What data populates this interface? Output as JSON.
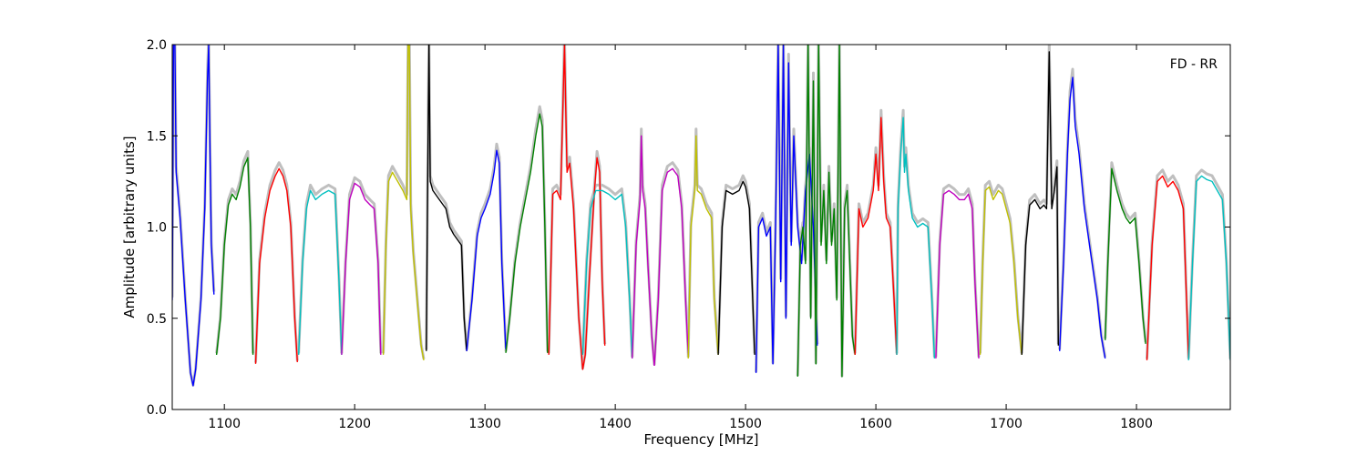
{
  "chart_data": {
    "type": "line",
    "title": "",
    "annotation": "FD - RR",
    "xlabel": "Frequency [MHz]",
    "ylabel": "Amplitude [arbitrary units]",
    "xlim": [
      1060,
      1872
    ],
    "ylim": [
      0.0,
      2.0
    ],
    "x_ticks": [
      1100,
      1200,
      1300,
      1400,
      1500,
      1600,
      1700,
      1800
    ],
    "x_tick_labels": [
      "1100",
      "1200",
      "1300",
      "1400",
      "1500",
      "1600",
      "1700",
      "1800"
    ],
    "y_ticks": [
      0.0,
      0.5,
      1.0,
      1.5,
      2.0
    ],
    "y_tick_labels": [
      "0.0",
      "0.5",
      "1.0",
      "1.5",
      "2.0"
    ],
    "grid": false,
    "legend": false,
    "reference_color": "#bfbfbf",
    "series": [
      {
        "color": "#0000ff",
        "x": [
          1060,
          1061,
          1062,
          1063,
          1066,
          1070,
          1074,
          1076,
          1078,
          1082,
          1085,
          1087,
          1088,
          1089,
          1090,
          1092
        ],
        "y": [
          0.6,
          2.0,
          2.0,
          1.3,
          1.05,
          0.6,
          0.2,
          0.13,
          0.22,
          0.6,
          1.1,
          1.8,
          2.0,
          1.4,
          0.9,
          0.63
        ]
      },
      {
        "color": "#008000",
        "x": [
          1094,
          1097,
          1100,
          1103,
          1106,
          1109,
          1112,
          1115,
          1118,
          1120,
          1122
        ],
        "y": [
          0.3,
          0.5,
          0.9,
          1.12,
          1.18,
          1.15,
          1.22,
          1.33,
          1.38,
          1.0,
          0.3
        ]
      },
      {
        "color": "#ff0000",
        "x": [
          1124,
          1127,
          1131,
          1135,
          1139,
          1142,
          1145,
          1148,
          1151,
          1154,
          1156
        ],
        "y": [
          0.25,
          0.8,
          1.05,
          1.2,
          1.28,
          1.32,
          1.28,
          1.2,
          1.0,
          0.5,
          0.26
        ]
      },
      {
        "color": "#00bfbf",
        "x": [
          1157,
          1160,
          1163,
          1166,
          1170,
          1175,
          1180,
          1185,
          1188,
          1190
        ],
        "y": [
          0.3,
          0.8,
          1.1,
          1.2,
          1.15,
          1.18,
          1.2,
          1.18,
          0.7,
          0.3
        ]
      },
      {
        "color": "#bf00bf",
        "x": [
          1190,
          1193,
          1196,
          1200,
          1204,
          1208,
          1212,
          1215,
          1218,
          1220
        ],
        "y": [
          0.3,
          0.8,
          1.15,
          1.24,
          1.22,
          1.15,
          1.12,
          1.1,
          0.8,
          0.3
        ]
      },
      {
        "color": "#bfbf00",
        "x": [
          1222,
          1224,
          1226,
          1229,
          1233,
          1237,
          1240,
          1241,
          1242,
          1243,
          1245,
          1248,
          1251,
          1253
        ],
        "y": [
          0.3,
          0.9,
          1.25,
          1.3,
          1.25,
          1.2,
          1.15,
          2.0,
          2.0,
          1.1,
          0.85,
          0.6,
          0.35,
          0.27
        ]
      },
      {
        "color": "#000000",
        "x": [
          1255,
          1256,
          1257,
          1258,
          1260,
          1265,
          1270,
          1273,
          1276,
          1279,
          1282,
          1284,
          1286
        ],
        "y": [
          0.32,
          1.2,
          2.0,
          1.25,
          1.2,
          1.15,
          1.1,
          1.0,
          0.96,
          0.93,
          0.9,
          0.5,
          0.32
        ]
      },
      {
        "color": "#0000ff",
        "x": [
          1286,
          1290,
          1294,
          1297,
          1300,
          1304,
          1307,
          1309,
          1311,
          1313,
          1316
        ],
        "y": [
          0.32,
          0.6,
          0.95,
          1.05,
          1.1,
          1.18,
          1.3,
          1.42,
          1.35,
          0.8,
          0.33
        ]
      },
      {
        "color": "#008000",
        "x": [
          1316,
          1319,
          1323,
          1327,
          1331,
          1335,
          1339,
          1342,
          1344,
          1346,
          1348
        ],
        "y": [
          0.31,
          0.5,
          0.8,
          1.0,
          1.15,
          1.3,
          1.5,
          1.62,
          1.55,
          1.0,
          0.31
        ]
      },
      {
        "color": "#ff0000",
        "x": [
          1349,
          1352,
          1355,
          1358,
          1361,
          1363,
          1365,
          1368,
          1372,
          1375,
          1377,
          1380,
          1384,
          1386,
          1388,
          1390,
          1392
        ],
        "y": [
          0.3,
          1.18,
          1.2,
          1.15,
          2.0,
          1.3,
          1.35,
          1.1,
          0.5,
          0.22,
          0.3,
          0.7,
          1.2,
          1.38,
          1.3,
          0.7,
          0.35
        ]
      },
      {
        "color": "#00bfbf",
        "x": [
          1375,
          1378,
          1381,
          1385,
          1390,
          1395,
          1400,
          1405,
          1408,
          1411,
          1413
        ],
        "y": [
          0.3,
          0.8,
          1.1,
          1.2,
          1.2,
          1.18,
          1.15,
          1.18,
          1.0,
          0.6,
          0.28
        ]
      },
      {
        "color": "#bf00bf",
        "x": [
          1413,
          1416,
          1419,
          1420,
          1421,
          1423,
          1425,
          1428,
          1430
        ],
        "y": [
          0.28,
          0.9,
          1.15,
          1.5,
          1.2,
          1.1,
          0.8,
          0.4,
          0.24
        ]
      },
      {
        "color": "#bf00bf",
        "x": [
          1430,
          1433,
          1436,
          1440,
          1444,
          1448,
          1451,
          1454,
          1456
        ],
        "y": [
          0.24,
          0.6,
          1.2,
          1.3,
          1.32,
          1.28,
          1.1,
          0.6,
          0.3
        ]
      },
      {
        "color": "#bfbf00",
        "x": [
          1456,
          1458,
          1461,
          1462,
          1463,
          1466,
          1470,
          1474,
          1476,
          1479
        ],
        "y": [
          0.28,
          1.0,
          1.2,
          1.5,
          1.2,
          1.18,
          1.1,
          1.05,
          0.6,
          0.3
        ]
      },
      {
        "color": "#000000",
        "x": [
          1479,
          1482,
          1485,
          1490,
          1495,
          1498,
          1500,
          1503,
          1507
        ],
        "y": [
          0.3,
          1.0,
          1.2,
          1.18,
          1.2,
          1.25,
          1.22,
          1.1,
          0.3
        ]
      },
      {
        "color": "#0000ff",
        "x": [
          1508,
          1510,
          1513,
          1516,
          1519,
          1521,
          1523,
          1525,
          1527,
          1529,
          1531,
          1533,
          1535,
          1537,
          1540,
          1543,
          1546,
          1549,
          1552,
          1555
        ],
        "y": [
          0.2,
          1.0,
          1.05,
          0.95,
          1.0,
          0.25,
          1.0,
          2.0,
          0.7,
          2.0,
          0.5,
          1.9,
          0.9,
          1.5,
          1.0,
          0.8,
          1.2,
          1.4,
          1.0,
          0.35
        ]
      },
      {
        "color": "#008000",
        "x": [
          1540,
          1542,
          1544,
          1546,
          1548,
          1550,
          1552,
          1554,
          1556,
          1558,
          1560,
          1562,
          1564,
          1566,
          1568,
          1570,
          1572,
          1574,
          1576,
          1578,
          1580,
          1582,
          1584
        ],
        "y": [
          0.18,
          0.9,
          1.0,
          0.8,
          2.0,
          0.5,
          1.8,
          0.25,
          2.0,
          0.9,
          1.2,
          0.8,
          1.3,
          0.9,
          1.1,
          0.6,
          2.0,
          0.18,
          1.1,
          1.2,
          0.8,
          0.4,
          0.3
        ]
      },
      {
        "color": "#ff0000",
        "x": [
          1584,
          1587,
          1590,
          1594,
          1598,
          1600,
          1602,
          1604,
          1606,
          1608,
          1611,
          1614,
          1616
        ],
        "y": [
          0.3,
          1.1,
          1.0,
          1.05,
          1.2,
          1.4,
          1.2,
          1.6,
          1.25,
          1.05,
          1.0,
          0.6,
          0.3
        ]
      },
      {
        "color": "#00bfbf",
        "x": [
          1616,
          1617,
          1619,
          1621,
          1622,
          1623,
          1625,
          1628,
          1632,
          1636,
          1640,
          1643,
          1645
        ],
        "y": [
          0.3,
          1.1,
          1.4,
          1.6,
          1.3,
          1.4,
          1.2,
          1.05,
          1.0,
          1.02,
          1.0,
          0.6,
          0.28
        ]
      },
      {
        "color": "#bf00bf",
        "x": [
          1646,
          1649,
          1652,
          1656,
          1660,
          1664,
          1668,
          1671,
          1674,
          1676,
          1679
        ],
        "y": [
          0.28,
          0.9,
          1.18,
          1.2,
          1.18,
          1.15,
          1.15,
          1.18,
          1.1,
          0.7,
          0.28
        ]
      },
      {
        "color": "#bfbf00",
        "x": [
          1680,
          1682,
          1684,
          1687,
          1690,
          1694,
          1697,
          1700,
          1703,
          1706,
          1709,
          1712
        ],
        "y": [
          0.3,
          0.8,
          1.2,
          1.22,
          1.15,
          1.2,
          1.18,
          1.1,
          1.02,
          0.8,
          0.5,
          0.3
        ]
      },
      {
        "color": "#000000",
        "x": [
          1712,
          1715,
          1718,
          1722,
          1726,
          1729,
          1731,
          1733,
          1735,
          1737,
          1739,
          1740
        ],
        "y": [
          0.3,
          0.9,
          1.12,
          1.15,
          1.1,
          1.12,
          1.1,
          1.96,
          1.1,
          1.2,
          1.33,
          0.35
        ]
      },
      {
        "color": "#0000ff",
        "x": [
          1741,
          1744,
          1747,
          1749,
          1751,
          1753,
          1756,
          1760,
          1765,
          1770,
          1773,
          1776
        ],
        "y": [
          0.32,
          0.8,
          1.4,
          1.7,
          1.82,
          1.55,
          1.4,
          1.1,
          0.85,
          0.6,
          0.4,
          0.28
        ]
      },
      {
        "color": "#008000",
        "x": [
          1776,
          1778,
          1781,
          1785,
          1789,
          1792,
          1795,
          1799,
          1802,
          1805,
          1807
        ],
        "y": [
          0.38,
          0.8,
          1.32,
          1.2,
          1.1,
          1.05,
          1.02,
          1.05,
          0.8,
          0.5,
          0.36
        ]
      },
      {
        "color": "#ff0000",
        "x": [
          1808,
          1812,
          1816,
          1820,
          1824,
          1828,
          1832,
          1836,
          1840
        ],
        "y": [
          0.27,
          0.9,
          1.25,
          1.28,
          1.22,
          1.25,
          1.2,
          1.1,
          0.28
        ]
      },
      {
        "color": "#00bfbf",
        "x": [
          1840,
          1843,
          1846,
          1850,
          1854,
          1858,
          1862,
          1866,
          1869,
          1872
        ],
        "y": [
          0.27,
          0.8,
          1.25,
          1.28,
          1.26,
          1.25,
          1.2,
          1.15,
          0.8,
          0.27
        ]
      }
    ]
  }
}
